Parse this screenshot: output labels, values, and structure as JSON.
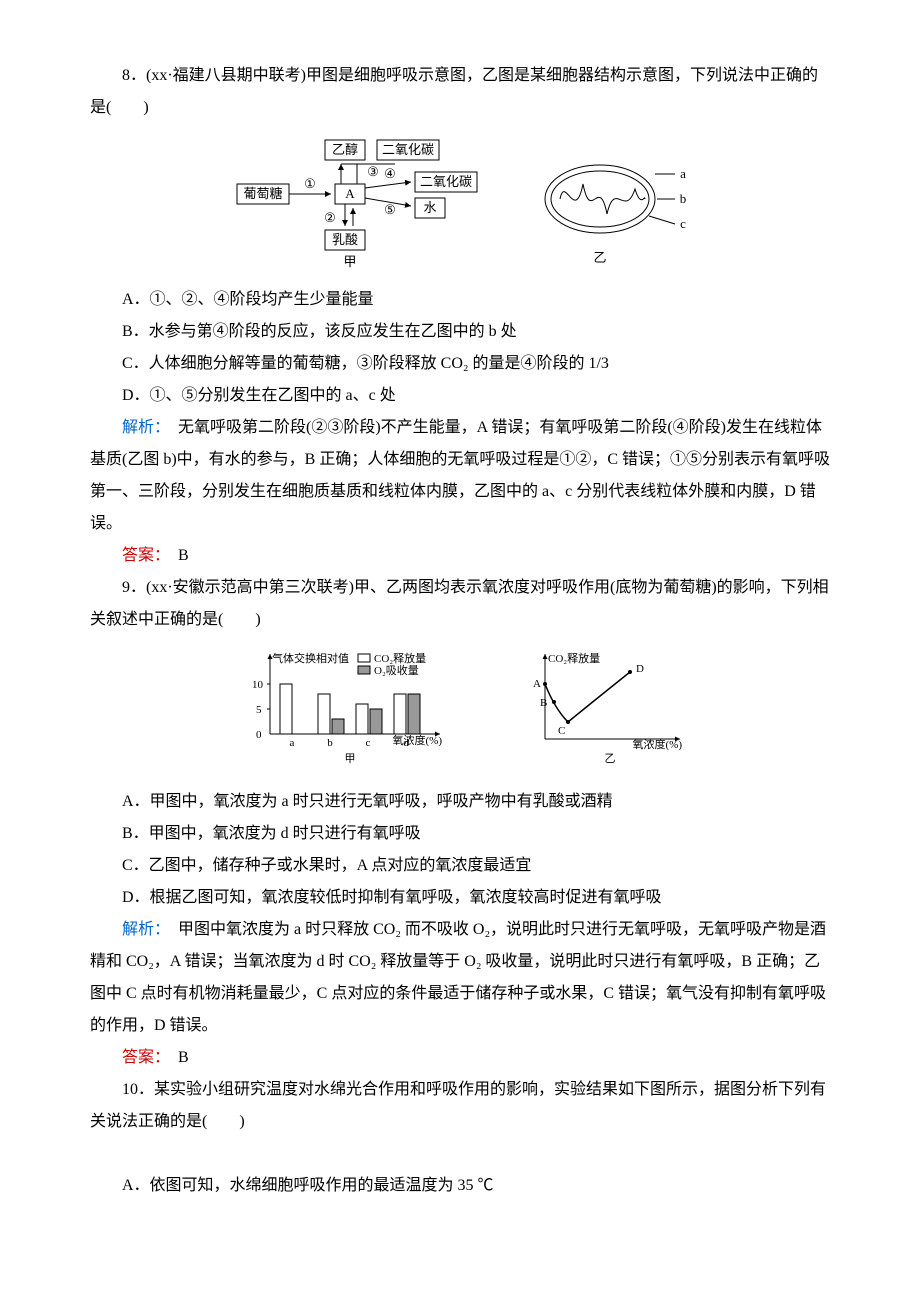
{
  "q8": {
    "number": "8．",
    "source": "(xx·福建八县期中联考)",
    "stem1": "甲图是细胞呼吸示意图，乙图是某细胞器结构示意图，下列说法中正确的是(　　)",
    "optA": "A．①、②、④阶段均产生少量能量",
    "optB": "B．水参与第④阶段的反应，该反应发生在乙图中的 b 处",
    "optC": "C．人体细胞分解等量的葡萄糖，③阶段释放 CO₂ 的量是④阶段的 1/3",
    "optD": "D．①、⑤分别发生在乙图中的 a、c 处",
    "analysis_label": "解析：",
    "analysis_text": "　无氧呼吸第二阶段(②③阶段)不产生能量，A 错误；有氧呼吸第二阶段(④阶段)发生在线粒体基质(乙图 b)中，有水的参与，B 正确；人体细胞的无氧呼吸过程是①②，C 错误；①⑤分别表示有氧呼吸第一、三阶段，分别发生在细胞质基质和线粒体内膜，乙图中的 a、c 分别代表线粒体外膜和内膜，D 错误。",
    "answer_label": "答案：",
    "answer": "　B",
    "fig": {
      "boxes": {
        "ethanol": "乙醇",
        "co2a": "二氧化碳",
        "glucose": "葡萄糖",
        "A": "A",
        "co2b": "二氧化碳",
        "water": "水",
        "lactate": "乳酸"
      },
      "labels": {
        "n1": "①",
        "n2": "②",
        "n3": "③",
        "n4": "④",
        "n5": "⑤",
        "jia": "甲",
        "yi": "乙",
        "a": "a",
        "b": "b",
        "c": "c"
      },
      "colors": {
        "stroke": "#000000",
        "fill": "#ffffff",
        "text": "#000000"
      }
    }
  },
  "q9": {
    "number": "9．",
    "source": "(xx·安徽示范高中第三次联考)",
    "stem1": "甲、乙两图均表示氧浓度对呼吸作用(底物为葡萄糖)的影响，下列相关叙述中正确的是(　　)",
    "optA": "A．甲图中，氧浓度为 a 时只进行无氧呼吸，呼吸产物中有乳酸或酒精",
    "optB": "B．甲图中，氧浓度为 d 时只进行有氧呼吸",
    "optC": "C．乙图中，储存种子或水果时，A 点对应的氧浓度最适宜",
    "optD": "D．根据乙图可知，氧浓度较低时抑制有氧呼吸，氧浓度较高时促进有氧呼吸",
    "analysis_label": "解析：",
    "analysis_text": "　甲图中氧浓度为 a 时只释放 CO₂ 而不吸收 O₂，说明此时只进行无氧呼吸，无氧呼吸产物是酒精和 CO₂，A 错误；当氧浓度为 d 时 CO₂ 释放量等于 O₂ 吸收量，说明此时只进行有氧呼吸，B 正确；乙图中 C 点时有机物消耗量最少，C 点对应的条件最适于储存种子或水果，C 错误；氧气没有抑制有氧呼吸的作用，D 错误。",
    "answer_label": "答案：",
    "answer": "　B",
    "fig": {
      "jia": {
        "ylabel": "气体交换相对值",
        "legend_co2": "CO₂释放量",
        "legend_o2": "O₂吸收量",
        "xlabel": "氧浓度(%)",
        "caption": "甲",
        "x_categories": [
          "a",
          "b",
          "c",
          "d"
        ],
        "y_ticks": [
          0,
          5,
          10
        ],
        "co2_values": [
          10,
          8,
          6,
          8
        ],
        "o2_values": [
          0,
          3,
          5,
          8
        ],
        "colors": {
          "axis": "#000",
          "co2_fill": "#ffffff",
          "co2_stroke": "#000",
          "o2_fill": "#999999",
          "o2_stroke": "#000"
        }
      },
      "yi": {
        "ylabel": "CO₂释放量",
        "xlabel": "氧浓度(%)",
        "caption": "乙",
        "pts": {
          "A": "A",
          "B": "B",
          "C": "C",
          "D": "D"
        },
        "colors": {
          "axis": "#000",
          "curve": "#000"
        }
      }
    }
  },
  "q10": {
    "number": "10．",
    "stem": "某实验小组研究温度对水绵光合作用和呼吸作用的影响，实验结果如下图所示，据图分析下列有关说法正确的是(　　)",
    "optA": "A．依图可知，水绵细胞呼吸作用的最适温度为 35 ℃"
  }
}
